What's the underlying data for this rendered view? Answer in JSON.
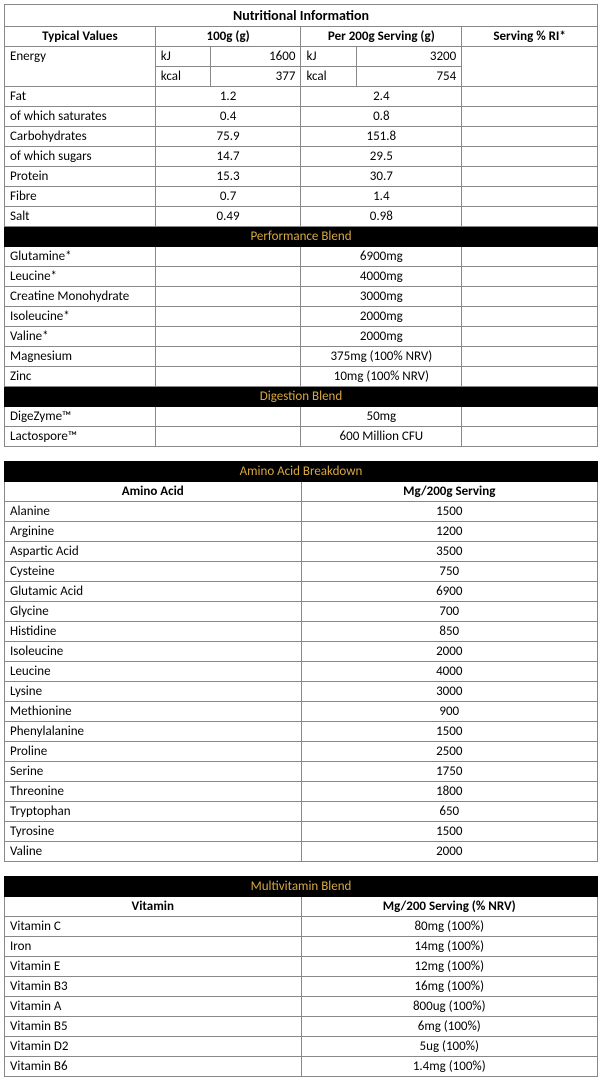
{
  "title": "Nutritional Information",
  "headers": {
    "typical": "Typical Values",
    "per100": "100g (g)",
    "per200": "Per 200g Serving (g)",
    "ri": "Serving % RI*"
  },
  "energy": {
    "label": "Energy",
    "kj_label": "kJ",
    "kj_100": "1600",
    "kj_200": "3200",
    "kcal_label": "kcal",
    "kcal_100": "377",
    "kcal_200": "754"
  },
  "basics": [
    {
      "label": "Fat",
      "v100": "1.2",
      "v200": "2.4"
    },
    {
      "label": "of which saturates",
      "v100": "0.4",
      "v200": "0.8"
    },
    {
      "label": "Carbohydrates",
      "v100": "75.9",
      "v200": "151.8"
    },
    {
      "label": "of which sugars",
      "v100": "14.7",
      "v200": "29.5"
    },
    {
      "label": "Protein",
      "v100": "15.3",
      "v200": "30.7"
    },
    {
      "label": "Fibre",
      "v100": "0.7",
      "v200": "1.4"
    },
    {
      "label": "Salt",
      "v100": "0.49",
      "v200": "0.98"
    }
  ],
  "perf": {
    "title": "Performance Blend",
    "rows": [
      {
        "label": "Glutamine*",
        "val": "6900mg"
      },
      {
        "label": "Leucine*",
        "val": "4000mg"
      },
      {
        "label": "Creatine Monohydrate",
        "val": "3000mg"
      },
      {
        "label": "Isoleucine*",
        "val": "2000mg"
      },
      {
        "label": "Valine*",
        "val": "2000mg"
      },
      {
        "label": "Magnesium",
        "val": "375mg (100% NRV)"
      },
      {
        "label": "Zinc",
        "val": "10mg (100% NRV)"
      }
    ]
  },
  "digest": {
    "title": "Digestion Blend",
    "rows": [
      {
        "label": "DigeZyme™",
        "val": "50mg"
      },
      {
        "label": "Lactospore™",
        "val": "600 Million CFU"
      }
    ]
  },
  "amino": {
    "title": "Amino Acid Breakdown",
    "col1": "Amino Acid",
    "col2": "Mg/200g Serving",
    "rows": [
      {
        "label": "Alanine",
        "val": "1500"
      },
      {
        "label": "Arginine",
        "val": "1200"
      },
      {
        "label": "Aspartic Acid",
        "val": "3500"
      },
      {
        "label": "Cysteine",
        "val": "750"
      },
      {
        "label": "Glutamic Acid",
        "val": "6900"
      },
      {
        "label": "Glycine",
        "val": "700"
      },
      {
        "label": "Histidine",
        "val": "850"
      },
      {
        "label": "Isoleucine",
        "val": "2000"
      },
      {
        "label": "Leucine",
        "val": "4000"
      },
      {
        "label": "Lysine",
        "val": "3000"
      },
      {
        "label": "Methionine",
        "val": "900"
      },
      {
        "label": "Phenylalanine",
        "val": "1500"
      },
      {
        "label": "Proline",
        "val": "2500"
      },
      {
        "label": "Serine",
        "val": "1750"
      },
      {
        "label": "Threonine",
        "val": "1800"
      },
      {
        "label": "Tryptophan",
        "val": "650"
      },
      {
        "label": "Tyrosine",
        "val": "1500"
      },
      {
        "label": "Valine",
        "val": "2000"
      }
    ]
  },
  "multi": {
    "title": "Multivitamin Blend",
    "col1": "Vitamin",
    "col2": "Mg/200 Serving (% NRV)",
    "rows": [
      {
        "label": "Vitamin C",
        "val": "80mg (100%)"
      },
      {
        "label": "Iron",
        "val": "14mg (100%)"
      },
      {
        "label": "Vitamin E",
        "val": "12mg (100%)"
      },
      {
        "label": "Vitamin B3",
        "val": "16mg (100%)"
      },
      {
        "label": "Vitamin A",
        "val": "800ug (100%)"
      },
      {
        "label": "Vitamin B5",
        "val": "6mg (100%)"
      },
      {
        "label": "Vitamin D2",
        "val": "5ug (100%)"
      },
      {
        "label": "Vitamin B6",
        "val": "1.4mg (100%)"
      }
    ]
  }
}
